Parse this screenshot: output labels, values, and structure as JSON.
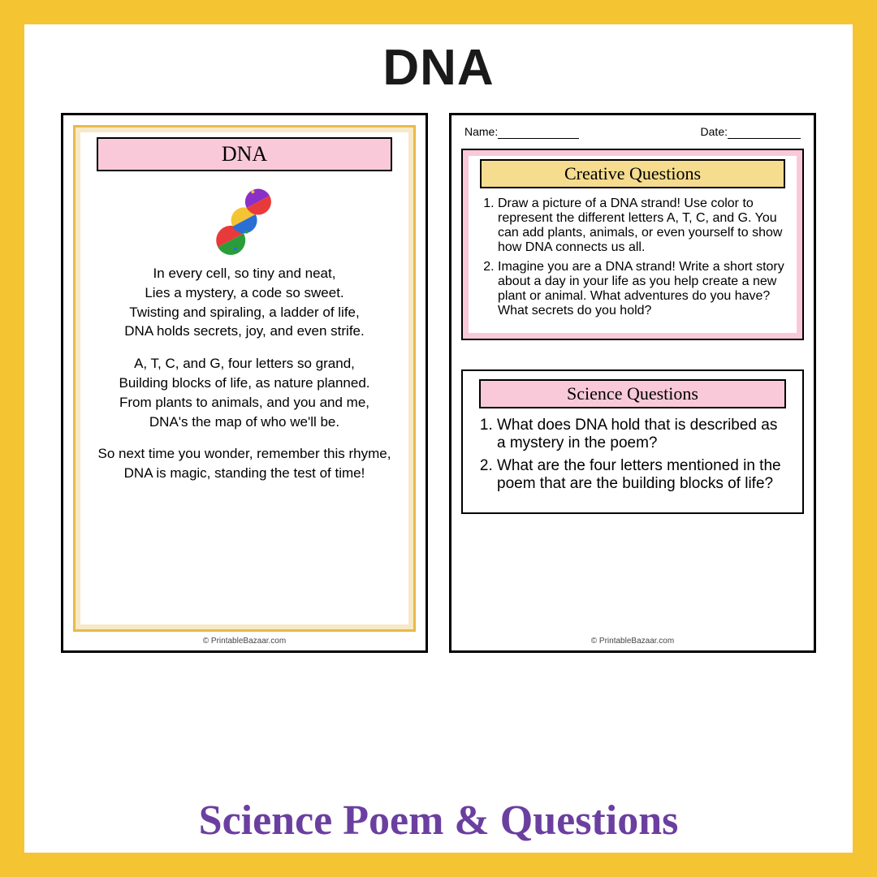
{
  "title": "DNA",
  "subtitle": "Science Poem & Questions",
  "copyright": "© PrintableBazaar.com",
  "colors": {
    "frame_gold": "#f5c433",
    "pink": "#f9c9da",
    "gold_light": "#f7e9c7",
    "gold_border": "#e9b94a",
    "yellow_head": "#f5dc8e",
    "purple": "#6b3fa0"
  },
  "left": {
    "heading": "DNA",
    "stanzas": [
      "In every cell, so tiny and neat,\nLies a mystery, a code so sweet.\nTwisting and spiraling, a ladder of life,\nDNA holds secrets, joy, and even strife.",
      "A, T, C, and G, four letters so grand,\nBuilding blocks of life, as nature planned.\nFrom plants to animals, and you and me,\nDNA's the map of who we'll be.",
      "So next time you wonder, remember this rhyme,\nDNA is magic, standing the test of time!"
    ],
    "graphic_colors": [
      "#e83a3a",
      "#2a9d3a",
      "#f5c433",
      "#2a6fd6",
      "#8a2fc7",
      "#e83a3a"
    ]
  },
  "right": {
    "name_label": "Name:",
    "date_label": "Date:",
    "creative": {
      "heading": "Creative Questions",
      "items": [
        "Draw a picture of a DNA strand! Use color to represent the different letters A, T, C, and G. You can add plants, animals, or even yourself to show how DNA connects us all.",
        "Imagine you are a DNA strand! Write a short story about a day in your life as you help create a new plant or animal. What adventures do you have? What secrets do you hold?"
      ]
    },
    "science": {
      "heading": "Science Questions",
      "items": [
        "What does DNA hold that is described as a mystery in the poem?",
        "What are the four letters mentioned in the poem that are the building blocks of life?"
      ]
    }
  }
}
